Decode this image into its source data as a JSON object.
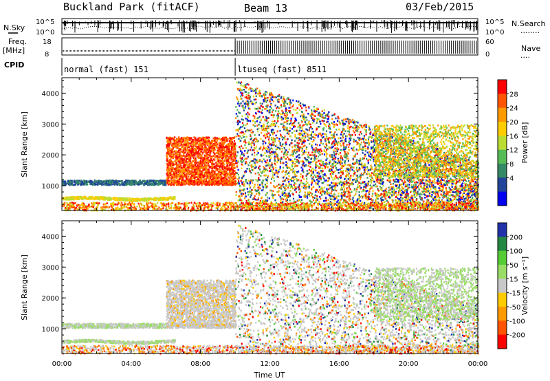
{
  "header": {
    "station": "Buckland Park (fitACF)",
    "beam": "Beam 13",
    "date": "03/Feb/2015"
  },
  "params": {
    "nsky_label": "N.Sky",
    "nsearch_label": "N.Search",
    "nsearch_dots": "........",
    "freq_label": "Freq.",
    "freq_unit": "[MHz]",
    "nave_label": "Nave",
    "nave_dots": "....",
    "cpid_label": "CPID",
    "noise_ticks_left": [
      "10^5",
      "10^0"
    ],
    "noise_ticks_right": [
      "10^5",
      "10^0"
    ],
    "freq_ticks": [
      "18",
      "8"
    ],
    "nave_ticks": [
      "60",
      "0"
    ],
    "cpid_segments": [
      {
        "label": "normal (fast) 151",
        "start": 0,
        "end": 10
      },
      {
        "label": "ltuseq (fast) 8511",
        "start": 10,
        "end": 24
      }
    ]
  },
  "chart_data": [
    {
      "type": "heatmap",
      "parameter": "power",
      "x_range": [
        0,
        24
      ],
      "y_range": [
        200,
        4500
      ],
      "xlabel": "Time UT",
      "ylabel": "Slant Range [km]",
      "y_ticks": [
        "1000",
        "2000",
        "3000",
        "4000"
      ],
      "colorbar": {
        "label": "Power [dB]",
        "ticks": [
          "28",
          "24",
          "20",
          "16",
          "12",
          "8",
          "4"
        ],
        "colors": [
          "#ff0000",
          "#ff5500",
          "#ff9900",
          "#ffcc00",
          "#bbdd33",
          "#55bb55",
          "#338866",
          "#224499",
          "#0000ee"
        ]
      }
    },
    {
      "type": "heatmap",
      "parameter": "velocity",
      "x_range": [
        0,
        24
      ],
      "y_range": [
        200,
        4500
      ],
      "xlabel": "Time UT",
      "ylabel": "Slant Range [km]",
      "y_ticks": [
        "1000",
        "2000",
        "3000",
        "4000"
      ],
      "x_ticks": [
        "00:00",
        "04:00",
        "08:00",
        "12:00",
        "16:00",
        "20:00",
        "00:00"
      ],
      "colorbar": {
        "label": "Velocity [m s⁻¹]",
        "ticks": [
          "200",
          "100",
          "50",
          "15",
          "-15",
          "-50",
          "-100",
          "-200"
        ],
        "colors": [
          "#2233aa",
          "#228844",
          "#55cc33",
          "#99dd66",
          "#c8c8c8",
          "#ffcc00",
          "#ff9900",
          "#ff5500",
          "#ff0000"
        ]
      }
    }
  ]
}
